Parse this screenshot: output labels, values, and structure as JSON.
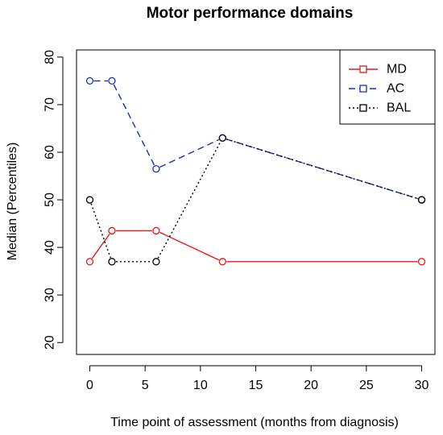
{
  "chart_data": {
    "type": "line",
    "title": "Motor performance domains",
    "xlabel": "Time point of assessment (months from diagnosis)",
    "ylabel": "Median (Percentiles)",
    "xlim": [
      -1.2,
      31.2
    ],
    "ylim": [
      17.5,
      81.5
    ],
    "xticks": [
      0,
      5,
      10,
      15,
      20,
      25,
      30
    ],
    "yticks": [
      20,
      30,
      40,
      50,
      60,
      70,
      80
    ],
    "grid": false,
    "legend_position": "top-right",
    "series": [
      {
        "name": "MD",
        "color": "#e31a1c",
        "dash": "solid",
        "x": [
          0,
          2,
          6,
          12,
          30
        ],
        "y": [
          37,
          43.5,
          43.5,
          37,
          37
        ]
      },
      {
        "name": "AC",
        "color": "#1f2fb4",
        "dash": "dashed",
        "x": [
          0,
          2,
          6,
          12,
          30
        ],
        "y": [
          75,
          75,
          56.5,
          63,
          50
        ]
      },
      {
        "name": "BAL",
        "color": "#000000",
        "dash": "dotted",
        "x": [
          0,
          2,
          6,
          12,
          30
        ],
        "y": [
          50,
          37,
          37,
          63,
          50
        ]
      }
    ]
  }
}
